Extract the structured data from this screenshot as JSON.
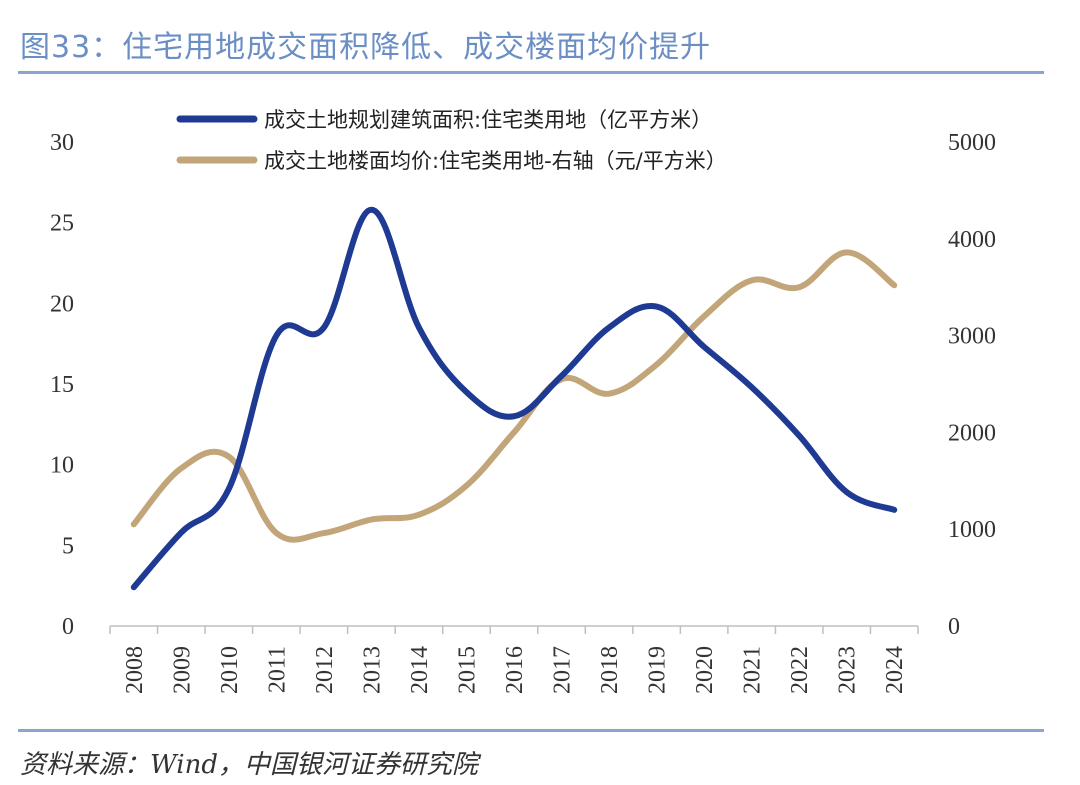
{
  "header": {
    "title": "图33：住宅用地成交面积降低、成交楼面均价提升"
  },
  "footer": {
    "source": "资料来源：Wind，中国银河证券研究院"
  },
  "colors": {
    "series1": "#1f3a93",
    "series2": "#c2a67a",
    "rule": "#8aa6cf",
    "title": "#6b8fc4"
  },
  "chart_data": {
    "type": "line",
    "x": [
      "2008",
      "2009",
      "2010",
      "2011",
      "2012",
      "2013",
      "2014",
      "2015",
      "2016",
      "2017",
      "2018",
      "2019",
      "2020",
      "2021",
      "2022",
      "2023",
      "2024"
    ],
    "series": [
      {
        "name": "成交土地规划建筑面积:住宅类用地（亿平方米）",
        "axis": "left",
        "values": [
          2.4,
          5.8,
          8.5,
          18.0,
          18.5,
          25.8,
          18.5,
          14.5,
          13.0,
          15.5,
          18.5,
          19.8,
          17.3,
          14.8,
          11.8,
          8.3,
          7.2
        ]
      },
      {
        "name": "成交土地楼面均价:住宅类用地-右轴（元/平方米）",
        "axis": "right",
        "values": [
          1050,
          1630,
          1750,
          960,
          960,
          1100,
          1150,
          1450,
          2000,
          2550,
          2400,
          2700,
          3200,
          3570,
          3500,
          3860,
          3520
        ]
      }
    ],
    "yleft": {
      "ticks": [
        0,
        5,
        10,
        15,
        20,
        25,
        30
      ],
      "range": [
        0,
        30
      ]
    },
    "yright": {
      "ticks": [
        0,
        1000,
        2000,
        3000,
        4000,
        5000
      ],
      "range": [
        0,
        5000
      ]
    },
    "grid": false,
    "legend": "top"
  }
}
